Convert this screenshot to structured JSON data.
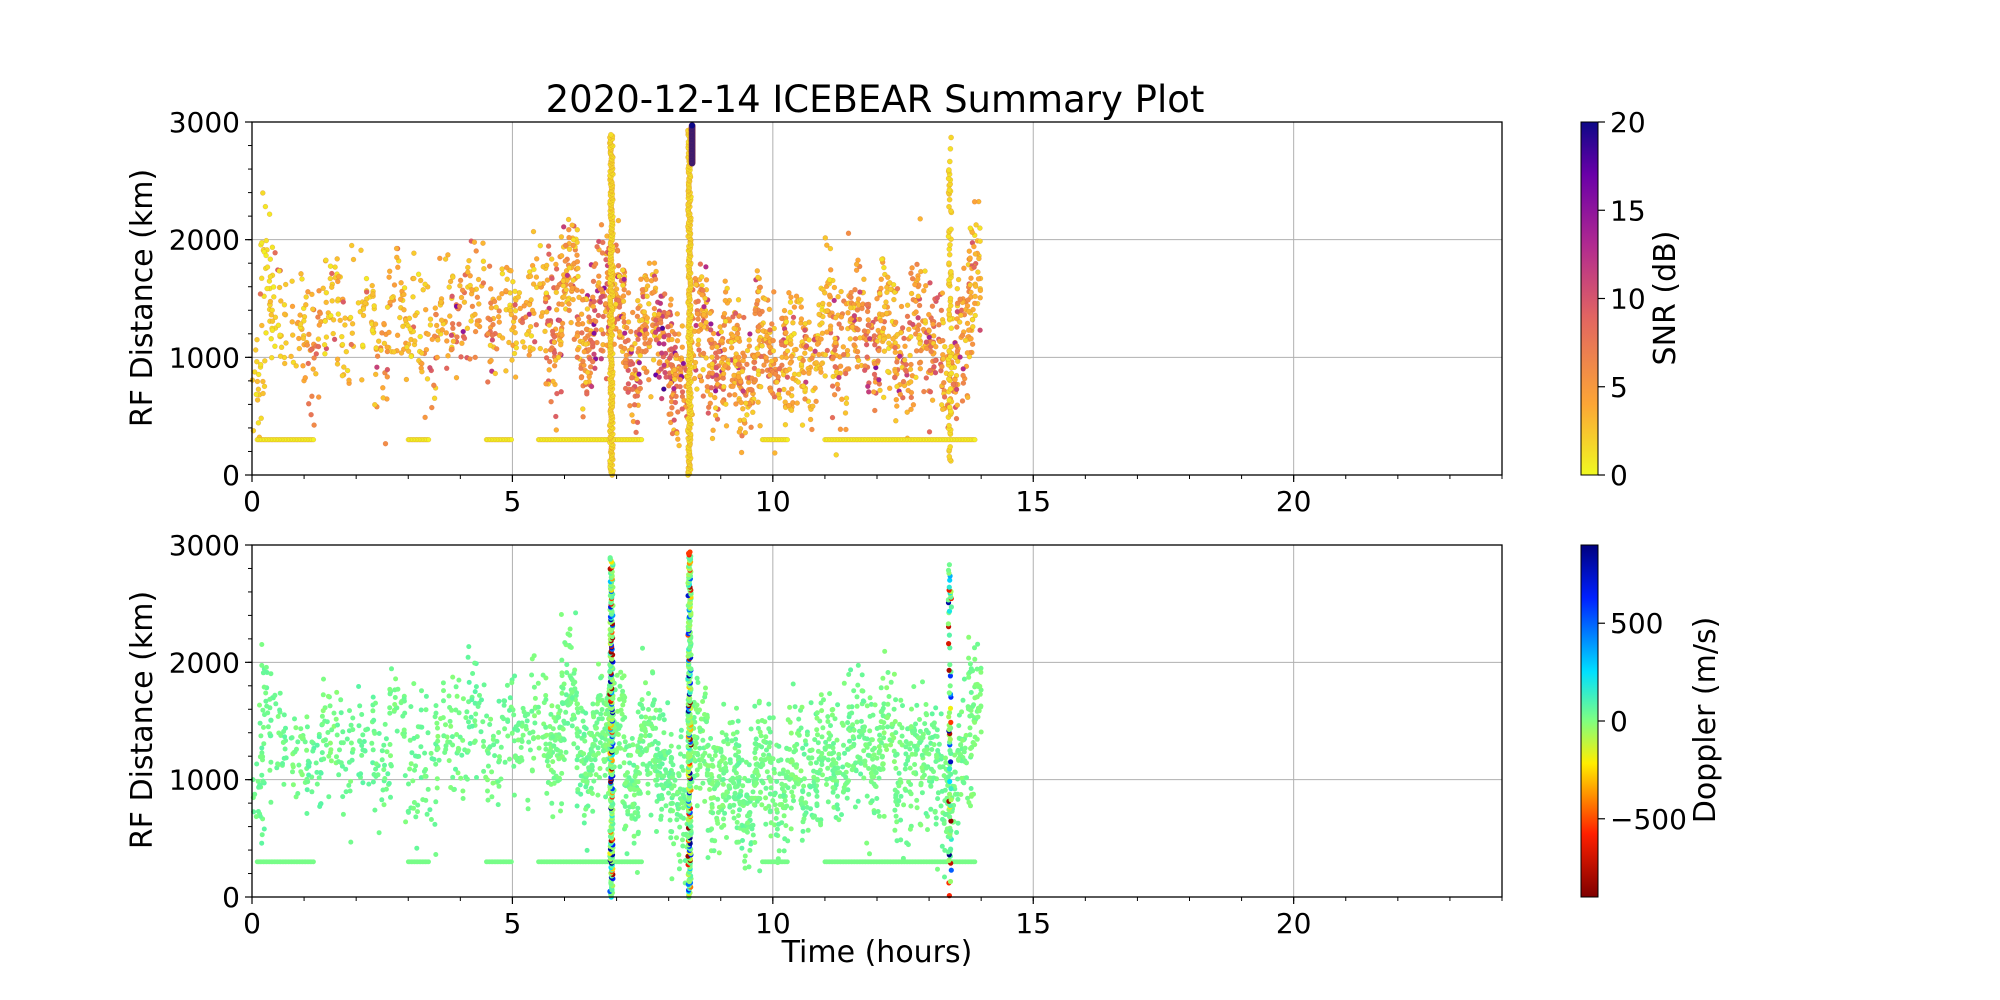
{
  "figure": {
    "title": "2020-12-14 ICEBEAR Summary Plot",
    "background": "#ffffff"
  },
  "chart_data": [
    {
      "type": "scatter",
      "panel": "top",
      "title": "2020-12-14 ICEBEAR Summary Plot",
      "xlabel": "",
      "ylabel": "RF Distance (km)",
      "xlim": [
        0,
        24
      ],
      "ylim": [
        0,
        3000
      ],
      "xticks": [
        0,
        5,
        10,
        15,
        20
      ],
      "yticks": [
        0,
        1000,
        2000,
        3000
      ],
      "grid": true,
      "color_variable": "SNR",
      "colorbar": {
        "label": "SNR (dB)",
        "range": [
          0,
          20
        ],
        "ticks": [
          0,
          5,
          10,
          15,
          20
        ],
        "colormap": "plasma_r",
        "colors": [
          "#f0f921",
          "#fca636",
          "#e16462",
          "#b12a90",
          "#6a00a8",
          "#0d0887"
        ]
      },
      "series": [
        {
          "values_description": "scattered echoes",
          "points": [
            [
              0.1,
              820,
              2
            ],
            [
              0.3,
              1750,
              1
            ],
            [
              0.5,
              1300,
              2
            ],
            [
              0.9,
              1180,
              3
            ],
            [
              1.2,
              1150,
              5
            ],
            [
              1.5,
              1450,
              2
            ],
            [
              1.8,
              1200,
              3
            ],
            [
              2.2,
              1350,
              2
            ],
            [
              2.5,
              1100,
              4
            ],
            [
              2.8,
              1500,
              3
            ],
            [
              3.1,
              1250,
              2
            ],
            [
              3.4,
              1050,
              4
            ],
            [
              3.7,
              1400,
              3
            ],
            [
              4.0,
              1300,
              6
            ],
            [
              4.3,
              1550,
              4
            ],
            [
              4.6,
              1200,
              5
            ],
            [
              4.9,
              1450,
              3
            ],
            [
              5.2,
              1350,
              4
            ],
            [
              5.5,
              1600,
              3
            ],
            [
              5.8,
              1250,
              6
            ],
            [
              6.1,
              1700,
              4
            ],
            [
              6.4,
              1150,
              5
            ],
            [
              6.7,
              1400,
              7
            ],
            [
              7.0,
              1500,
              5
            ],
            [
              7.3,
              950,
              6
            ],
            [
              7.6,
              1300,
              4
            ],
            [
              7.9,
              1100,
              8
            ],
            [
              8.2,
              800,
              6
            ],
            [
              8.6,
              1250,
              5
            ],
            [
              8.9,
              900,
              6
            ],
            [
              9.2,
              1050,
              4
            ],
            [
              9.5,
              750,
              5
            ],
            [
              9.8,
              1200,
              4
            ],
            [
              10.1,
              850,
              5
            ],
            [
              10.4,
              1100,
              3
            ],
            [
              10.7,
              950,
              4
            ],
            [
              11.0,
              1300,
              3
            ],
            [
              11.3,
              1050,
              5
            ],
            [
              11.6,
              1400,
              4
            ],
            [
              11.9,
              1150,
              6
            ],
            [
              12.2,
              1350,
              3
            ],
            [
              12.5,
              950,
              5
            ],
            [
              12.8,
              1250,
              4
            ],
            [
              13.1,
              1100,
              6
            ],
            [
              13.4,
              850,
              5
            ],
            [
              13.7,
              1300,
              4
            ],
            [
              13.9,
              1750,
              3
            ]
          ],
          "columns_of_echoes": [
            {
              "time": 6.9,
              "range": [
                0,
                2900
              ],
              "snr": 1
            },
            {
              "time": 8.4,
              "range": [
                0,
                2950
              ],
              "snr": 1
            },
            {
              "time": 13.4,
              "range": [
                0,
                2900
              ],
              "snr": 1
            }
          ],
          "strong_burst": {
            "time": 8.45,
            "range": [
              2650,
              2970
            ],
            "snr": 20
          },
          "near_range_band": {
            "distance": 300,
            "time_spans": [
              [
                0.1,
                1.2
              ],
              [
                3.0,
                3.4
              ],
              [
                4.5,
                5.0
              ],
              [
                5.5,
                7.5
              ],
              [
                9.8,
                10.3
              ],
              [
                11.0,
                13.9
              ]
            ],
            "snr": 0
          }
        }
      ]
    },
    {
      "type": "scatter",
      "panel": "bottom",
      "title": "",
      "xlabel": "Time (hours)",
      "ylabel": "RF Distance (km)",
      "xlim": [
        0,
        24
      ],
      "ylim": [
        0,
        3000
      ],
      "xticks": [
        0,
        5,
        10,
        15,
        20
      ],
      "yticks": [
        0,
        1000,
        2000,
        3000
      ],
      "grid": true,
      "color_variable": "Doppler",
      "colorbar": {
        "label": "Doppler (m/s)",
        "range": [
          -900,
          900
        ],
        "ticks": [
          -500,
          0,
          500
        ],
        "tick_labels": [
          "−500",
          "0",
          "500"
        ],
        "colormap": "jet_r",
        "colors": [
          "#7f0000",
          "#ff2000",
          "#ffee00",
          "#80ff80",
          "#00e0ff",
          "#0020ff",
          "#00007f"
        ]
      },
      "series": [
        {
          "values_description": "scattered echoes",
          "points": [
            [
              0.1,
              820,
              50
            ],
            [
              0.3,
              1750,
              30
            ],
            [
              0.5,
              1300,
              40
            ],
            [
              0.9,
              1180,
              20
            ],
            [
              1.2,
              1150,
              60
            ],
            [
              1.5,
              1450,
              10
            ],
            [
              1.8,
              1200,
              30
            ],
            [
              2.2,
              1350,
              50
            ],
            [
              2.5,
              1100,
              40
            ],
            [
              2.8,
              1500,
              20
            ],
            [
              3.1,
              1250,
              30
            ],
            [
              3.4,
              1050,
              40
            ],
            [
              3.7,
              1400,
              10
            ],
            [
              4.0,
              1300,
              30
            ],
            [
              4.3,
              1550,
              50
            ],
            [
              4.6,
              1200,
              20
            ],
            [
              4.9,
              1450,
              40
            ],
            [
              5.2,
              1350,
              30
            ],
            [
              5.5,
              1600,
              20
            ],
            [
              5.8,
              1250,
              10
            ],
            [
              6.1,
              1700,
              30
            ],
            [
              6.4,
              1150,
              40
            ],
            [
              6.7,
              1400,
              20
            ],
            [
              7.0,
              1500,
              10
            ],
            [
              7.3,
              950,
              30
            ],
            [
              7.6,
              1300,
              20
            ],
            [
              7.9,
              1100,
              40
            ],
            [
              8.2,
              800,
              30
            ],
            [
              8.6,
              1250,
              20
            ],
            [
              8.9,
              900,
              10
            ],
            [
              9.2,
              1050,
              30
            ],
            [
              9.5,
              750,
              40
            ],
            [
              9.8,
              1200,
              20
            ],
            [
              10.1,
              850,
              30
            ],
            [
              10.4,
              1100,
              10
            ],
            [
              10.7,
              950,
              40
            ],
            [
              11.0,
              1300,
              20
            ],
            [
              11.3,
              1050,
              30
            ],
            [
              11.6,
              1400,
              40
            ],
            [
              11.9,
              1150,
              20
            ],
            [
              12.2,
              1350,
              10
            ],
            [
              12.5,
              950,
              30
            ],
            [
              12.8,
              1250,
              20
            ],
            [
              13.1,
              1100,
              40
            ],
            [
              13.4,
              850,
              30
            ],
            [
              13.7,
              1300,
              20
            ],
            [
              13.9,
              1750,
              10
            ]
          ],
          "columns_of_echoes": [
            {
              "time": 6.9,
              "range": [
                0,
                2900
              ],
              "doppler_spread": [
                -900,
                900
              ]
            },
            {
              "time": 8.4,
              "range": [
                0,
                2950
              ],
              "doppler_spread": [
                -900,
                900
              ]
            },
            {
              "time": 13.4,
              "range": [
                0,
                2900
              ],
              "doppler_spread": [
                -900,
                900
              ]
            }
          ],
          "near_range_band": {
            "distance": 300,
            "time_spans": [
              [
                0.1,
                1.2
              ],
              [
                3.0,
                3.4
              ],
              [
                4.5,
                5.0
              ],
              [
                5.5,
                7.5
              ],
              [
                9.8,
                10.3
              ],
              [
                11.0,
                13.9
              ]
            ],
            "doppler": 0
          }
        }
      ]
    }
  ]
}
